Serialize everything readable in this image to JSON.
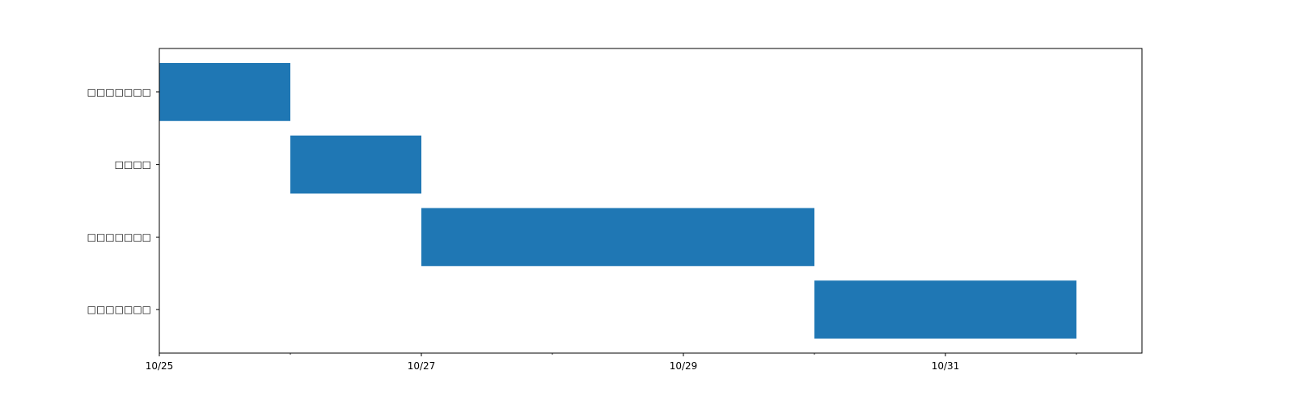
{
  "chart_data": {
    "type": "bar",
    "orientation": "horizontal",
    "title": "",
    "xlabel": "",
    "ylabel": "",
    "tasks": [
      {
        "label": "□□□□□□□",
        "start": "2024-10-25",
        "end": "2024-10-26"
      },
      {
        "label": "□□□□",
        "start": "2024-10-26",
        "end": "2024-10-27"
      },
      {
        "label": "□□□□□□□",
        "start": "2024-10-27",
        "end": "2024-10-30"
      },
      {
        "label": "□□□□□□□",
        "start": "2024-10-30",
        "end": "2024-11-01"
      }
    ],
    "xlim": [
      "2024-10-25",
      "2024-11-01T12:00"
    ],
    "x_major_ticks": [
      {
        "date": "2024-10-25",
        "label": "10/25"
      },
      {
        "date": "2024-10-27",
        "label": "10/27"
      },
      {
        "date": "2024-10-29",
        "label": "10/29"
      },
      {
        "date": "2024-10-31",
        "label": "10/31"
      }
    ],
    "x_minor_ticks": [
      "2024-10-26",
      "2024-10-28",
      "2024-10-30",
      "2024-11-01"
    ],
    "bar_color": "#1f77b4",
    "grid": false,
    "legend": "none"
  }
}
